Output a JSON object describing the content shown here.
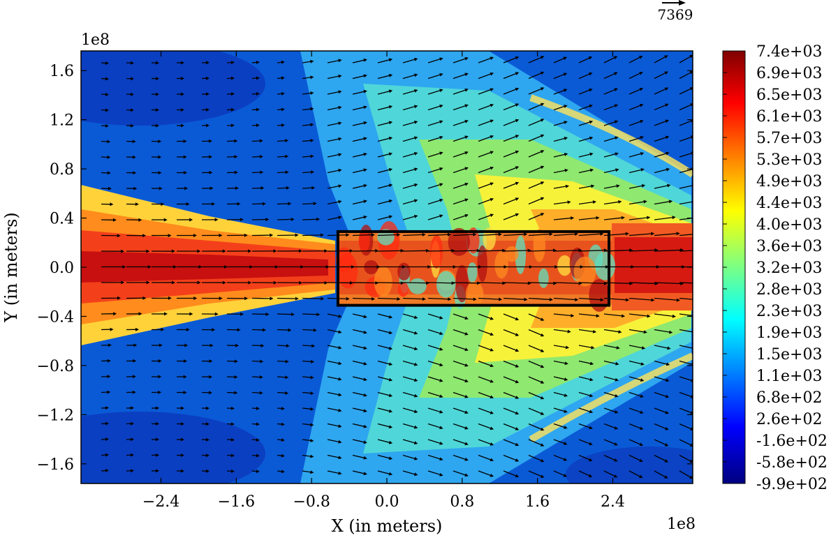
{
  "chart_data": {
    "type": "heatmap",
    "xlabel": "X (in meters)",
    "ylabel": "Y (in meters)",
    "x_multiplier": "1e8",
    "y_multiplier": "1e8",
    "xlim": [
      -3.25,
      3.25
    ],
    "ylim": [
      -1.76,
      1.76
    ],
    "x_ticks": [
      -2.4,
      -1.6,
      -0.8,
      0.0,
      0.8,
      1.6,
      2.4
    ],
    "x_tick_labels": [
      "−2.4",
      "−1.6",
      "−0.8",
      "0.0",
      "0.8",
      "1.6",
      "2.4"
    ],
    "y_ticks": [
      1.6,
      1.2,
      0.8,
      0.4,
      0.0,
      -0.4,
      -0.8,
      -1.2,
      -1.6
    ],
    "y_tick_labels": [
      "1.6",
      "1.2",
      "0.8",
      "0.4",
      "0.0",
      "−0.4",
      "−0.8",
      "−1.2",
      "−1.6"
    ],
    "colormap": "jet",
    "color_range": [
      -990,
      7400
    ],
    "colorbar_labels": [
      "7.4e+03",
      "6.9e+03",
      "6.5e+03",
      "6.1e+03",
      "5.7e+03",
      "5.3e+03",
      "4.9e+03",
      "4.4e+03",
      "4.0e+03",
      "3.6e+03",
      "3.2e+03",
      "2.8e+03",
      "2.3e+03",
      "1.9e+03",
      "1.5e+03",
      "1.1e+03",
      "6.8e+02",
      "2.6e+02",
      "-1.6e+02",
      "-5.8e+02",
      "-9.9e+02"
    ],
    "colorbar_placement": "right",
    "quiver_reference_label": "7369",
    "highlight_box": {
      "x": [
        -0.52,
        2.36
      ],
      "y": [
        -0.31,
        0.29
      ]
    },
    "grid": false
  }
}
